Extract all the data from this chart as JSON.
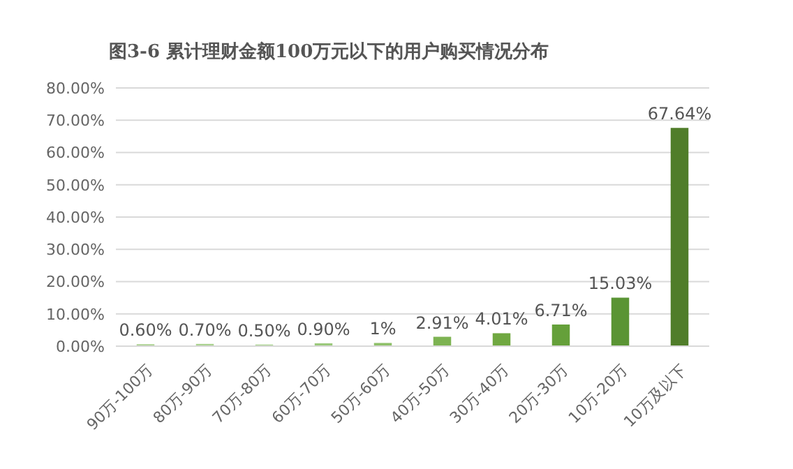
{
  "chart_data": {
    "type": "bar",
    "title": "图3-6 累计理财金额100万元以下的用户购买情况分布",
    "categories": [
      "90万-100万",
      "80万-90万",
      "70万-80万",
      "60万-70万",
      "50万-60万",
      "40万-50万",
      "30万-40万",
      "20万-30万",
      "10万-20万",
      "10万及以下"
    ],
    "values": [
      0.6,
      0.7,
      0.5,
      0.9,
      1,
      2.91,
      4.01,
      6.71,
      15.03,
      67.64
    ],
    "colors": [
      "#a9d18e",
      "#a9d18e",
      "#a9d18e",
      "#9bc97c",
      "#8fc06a",
      "#7db352",
      "#70a841",
      "#65a03a",
      "#5a9434",
      "#507d2a"
    ],
    "value_labels": [
      "0.60%",
      "0.70%",
      "0.50%",
      "0.90%",
      "1%",
      "2.91%",
      "4.01%",
      "6.71%",
      "15.03%",
      "67.64%"
    ],
    "ylim": [
      0,
      80
    ],
    "yticks": [
      {
        "value": 0,
        "label": "0.00%"
      },
      {
        "value": 10,
        "label": "10.00%"
      },
      {
        "value": 20,
        "label": "20.00%"
      },
      {
        "value": 30,
        "label": "30.00%"
      },
      {
        "value": 40,
        "label": "40.00%"
      },
      {
        "value": 50,
        "label": "50.00%"
      },
      {
        "value": 60,
        "label": "60.00%"
      },
      {
        "value": 70,
        "label": "70.00%"
      },
      {
        "value": 80,
        "label": "80.00%"
      }
    ],
    "grid": "y"
  }
}
